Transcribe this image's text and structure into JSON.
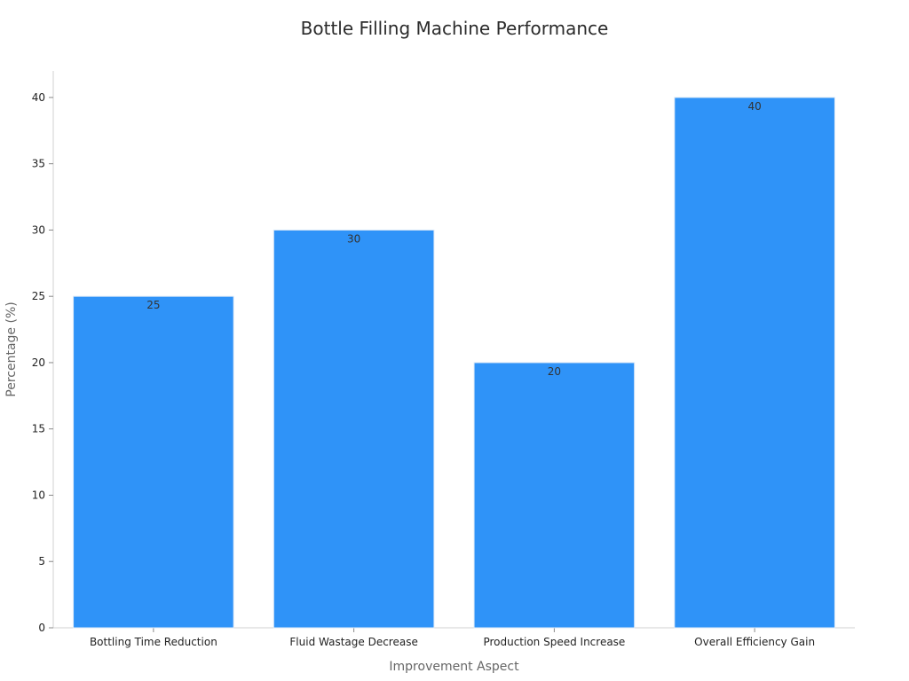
{
  "chart_data": {
    "type": "bar",
    "title": "Bottle Filling Machine Performance",
    "xlabel": "Improvement Aspect",
    "ylabel": "Percentage (%)",
    "categories": [
      "Bottling Time Reduction",
      "Fluid Wastage Decrease",
      "Production Speed Increase",
      "Overall Efficiency Gain"
    ],
    "values": [
      25,
      30,
      20,
      40
    ],
    "ylim": [
      0,
      42
    ],
    "yticks": [
      0,
      5,
      10,
      15,
      20,
      25,
      30,
      35,
      40
    ],
    "grid": false,
    "bar_color": "#2f93f8",
    "data_labels": true
  }
}
